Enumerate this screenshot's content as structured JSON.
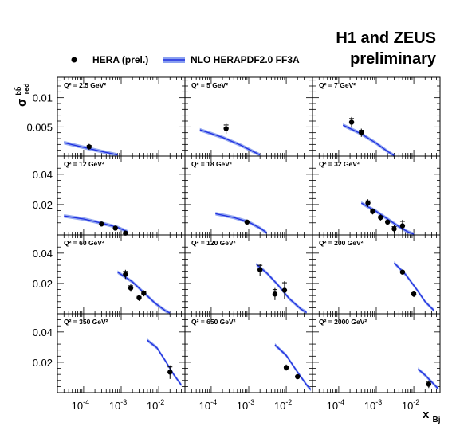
{
  "header": {
    "line1": "H1 and ZEUS",
    "line2": "preliminary"
  },
  "legend": {
    "data_label": "HERA (prel.)",
    "theory_label": "NLO HERAPDF2.0 FF3A"
  },
  "colors": {
    "theory_line": "#1f2fe0",
    "theory_band": "#8aa0f0",
    "data": "#000000",
    "frame": "#000000"
  },
  "chart_data": {
    "type": "scatter",
    "x_scale": "log",
    "xlim": [
      2e-05,
      0.05
    ],
    "xlabel_main": "x",
    "xlabel_sub": "Bj",
    "ylabel_main": "σ",
    "ylabel_sup": "bb̄",
    "ylabel_sub": "red",
    "x_ticks": [
      {
        "value": 0.0001,
        "base": "10",
        "exp": "-4"
      },
      {
        "value": 0.001,
        "base": "10",
        "exp": "-3"
      },
      {
        "value": 0.01,
        "base": "10",
        "exp": "-2"
      }
    ],
    "rows": [
      {
        "ylim": [
          0,
          0.0135
        ],
        "ticks": [
          {
            "v": 0.005,
            "label": "0.005"
          },
          {
            "v": 0.01,
            "label": "0.01"
          }
        ]
      },
      {
        "ylim": [
          0,
          0.052
        ],
        "ticks": [
          {
            "v": 0.02,
            "label": "0.02"
          },
          {
            "v": 0.04,
            "label": "0.04"
          }
        ]
      },
      {
        "ylim": [
          0,
          0.052
        ],
        "ticks": [
          {
            "v": 0.02,
            "label": "0.02"
          },
          {
            "v": 0.04,
            "label": "0.04"
          }
        ]
      },
      {
        "ylim": [
          0,
          0.052
        ],
        "ticks": [
          {
            "v": 0.02,
            "label": "0.02"
          },
          {
            "v": 0.04,
            "label": "0.04"
          }
        ]
      }
    ],
    "panels": [
      {
        "label": "Q² = 2.5 GeV²",
        "row": 0,
        "col": 0,
        "data": [
          {
            "x": 0.00014,
            "y": 0.0016,
            "err": 0.0005
          }
        ],
        "theory": [
          {
            "x": 3e-05,
            "y": 0.0023
          },
          {
            "x": 0.0001,
            "y": 0.0015
          },
          {
            "x": 0.0003,
            "y": 0.0008
          },
          {
            "x": 0.0008,
            "y": 0.0002
          }
        ]
      },
      {
        "label": "Q² = 5 GeV²",
        "row": 0,
        "col": 1,
        "data": [
          {
            "x": 0.00025,
            "y": 0.0047,
            "err": 0.0009
          }
        ],
        "theory": [
          {
            "x": 5e-05,
            "y": 0.0045
          },
          {
            "x": 0.0002,
            "y": 0.0032
          },
          {
            "x": 0.0006,
            "y": 0.0019
          },
          {
            "x": 0.0013,
            "y": 0.0008
          },
          {
            "x": 0.002,
            "y": 0.0002
          }
        ]
      },
      {
        "label": "Q² = 7 GeV²",
        "row": 0,
        "col": 2,
        "data": [
          {
            "x": 0.00022,
            "y": 0.0058,
            "err": 0.0009
          },
          {
            "x": 0.0004,
            "y": 0.004,
            "err": 0.0007
          }
        ],
        "theory": [
          {
            "x": 0.00013,
            "y": 0.0053
          },
          {
            "x": 0.0004,
            "y": 0.0038
          },
          {
            "x": 0.001,
            "y": 0.0022
          },
          {
            "x": 0.002,
            "y": 0.0008
          },
          {
            "x": 0.003,
            "y": 0.0001
          }
        ]
      },
      {
        "label": "Q² = 12 GeV²",
        "row": 1,
        "col": 0,
        "data": [
          {
            "x": 0.0003,
            "y": 0.0072,
            "err": 0.0012
          },
          {
            "x": 0.0007,
            "y": 0.0045,
            "err": 0.0009
          },
          {
            "x": 0.0013,
            "y": 0.0012,
            "err": 0.0007
          }
        ],
        "theory": [
          {
            "x": 3e-05,
            "y": 0.0125
          },
          {
            "x": 0.0001,
            "y": 0.0105
          },
          {
            "x": 0.0003,
            "y": 0.0078
          },
          {
            "x": 0.0008,
            "y": 0.005
          },
          {
            "x": 0.0015,
            "y": 0.002
          }
        ]
      },
      {
        "label": "Q² = 18 GeV²",
        "row": 1,
        "col": 1,
        "data": [
          {
            "x": 0.0009,
            "y": 0.0085,
            "err": 0.0012
          }
        ],
        "theory": [
          {
            "x": 0.00013,
            "y": 0.014
          },
          {
            "x": 0.0004,
            "y": 0.0115
          },
          {
            "x": 0.001,
            "y": 0.0085
          },
          {
            "x": 0.002,
            "y": 0.0045
          },
          {
            "x": 0.003,
            "y": 0.0015
          }
        ]
      },
      {
        "label": "Q² = 32 GeV²",
        "row": 1,
        "col": 2,
        "data": [
          {
            "x": 0.0006,
            "y": 0.021,
            "err": 0.0025
          },
          {
            "x": 0.0008,
            "y": 0.0155,
            "err": 0.002
          },
          {
            "x": 0.0013,
            "y": 0.0115,
            "err": 0.002
          },
          {
            "x": 0.002,
            "y": 0.0085,
            "err": 0.0018
          },
          {
            "x": 0.003,
            "y": 0.004,
            "err": 0.0025
          },
          {
            "x": 0.005,
            "y": 0.006,
            "err": 0.004
          }
        ],
        "theory": [
          {
            "x": 0.0004,
            "y": 0.021
          },
          {
            "x": 0.001,
            "y": 0.0155
          },
          {
            "x": 0.002,
            "y": 0.0105
          },
          {
            "x": 0.004,
            "y": 0.0055
          },
          {
            "x": 0.007,
            "y": 0.002
          },
          {
            "x": 0.01,
            "y": 0.0005
          }
        ]
      },
      {
        "label": "Q² = 60 GeV²",
        "row": 2,
        "col": 0,
        "data": [
          {
            "x": 0.0013,
            "y": 0.026,
            "err": 0.003
          },
          {
            "x": 0.0018,
            "y": 0.017,
            "err": 0.0025
          },
          {
            "x": 0.003,
            "y": 0.0105,
            "err": 0.002
          },
          {
            "x": 0.004,
            "y": 0.0135,
            "err": 0.002
          }
        ],
        "theory": [
          {
            "x": 0.0008,
            "y": 0.0275
          },
          {
            "x": 0.002,
            "y": 0.021
          },
          {
            "x": 0.004,
            "y": 0.014
          },
          {
            "x": 0.008,
            "y": 0.007
          },
          {
            "x": 0.015,
            "y": 0.002
          },
          {
            "x": 0.02,
            "y": 0.0005
          }
        ]
      },
      {
        "label": "Q² = 120 GeV²",
        "row": 2,
        "col": 1,
        "data": [
          {
            "x": 0.002,
            "y": 0.029,
            "err": 0.004
          },
          {
            "x": 0.005,
            "y": 0.013,
            "err": 0.004
          },
          {
            "x": 0.009,
            "y": 0.0155,
            "err": 0.006
          }
        ],
        "theory": [
          {
            "x": 0.0016,
            "y": 0.0325
          },
          {
            "x": 0.003,
            "y": 0.027
          },
          {
            "x": 0.006,
            "y": 0.019
          },
          {
            "x": 0.012,
            "y": 0.01
          },
          {
            "x": 0.025,
            "y": 0.003
          },
          {
            "x": 0.035,
            "y": 0.0008
          }
        ]
      },
      {
        "label": "Q² = 200 GeV²",
        "row": 2,
        "col": 2,
        "data": [
          {
            "x": 0.005,
            "y": 0.0275,
            "err": 0.0015
          },
          {
            "x": 0.01,
            "y": 0.013,
            "err": 0.002
          }
        ],
        "theory": [
          {
            "x": 0.003,
            "y": 0.0335
          },
          {
            "x": 0.006,
            "y": 0.026
          },
          {
            "x": 0.012,
            "y": 0.016
          },
          {
            "x": 0.02,
            "y": 0.008
          },
          {
            "x": 0.035,
            "y": 0.002
          }
        ]
      },
      {
        "label": "Q² = 350 GeV²",
        "row": 3,
        "col": 0,
        "data": [
          {
            "x": 0.02,
            "y": 0.0135,
            "err": 0.0045
          }
        ],
        "theory": [
          {
            "x": 0.005,
            "y": 0.0345
          },
          {
            "x": 0.009,
            "y": 0.0295
          },
          {
            "x": 0.015,
            "y": 0.021
          },
          {
            "x": 0.025,
            "y": 0.012
          },
          {
            "x": 0.04,
            "y": 0.005
          }
        ]
      },
      {
        "label": "Q² = 650 GeV²",
        "row": 3,
        "col": 1,
        "data": [
          {
            "x": 0.01,
            "y": 0.0165,
            "err": 0.002
          },
          {
            "x": 0.02,
            "y": 0.0105,
            "err": 0.0015
          }
        ],
        "theory": [
          {
            "x": 0.005,
            "y": 0.0315
          },
          {
            "x": 0.01,
            "y": 0.0245
          },
          {
            "x": 0.02,
            "y": 0.0135
          },
          {
            "x": 0.035,
            "y": 0.005
          },
          {
            "x": 0.045,
            "y": 0.002
          }
        ]
      },
      {
        "label": "Q² = 2000 GeV²",
        "row": 3,
        "col": 2,
        "data": [
          {
            "x": 0.025,
            "y": 0.0055,
            "err": 0.0025
          }
        ],
        "theory": [
          {
            "x": 0.013,
            "y": 0.0155
          },
          {
            "x": 0.02,
            "y": 0.0115
          },
          {
            "x": 0.03,
            "y": 0.007
          },
          {
            "x": 0.045,
            "y": 0.0025
          }
        ]
      }
    ]
  }
}
